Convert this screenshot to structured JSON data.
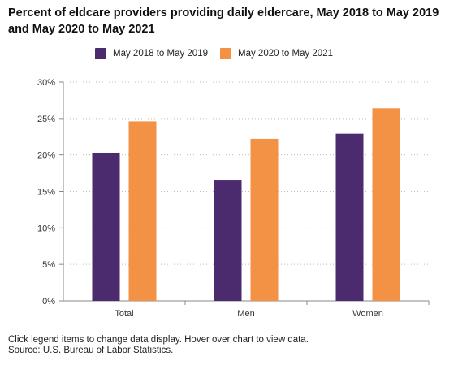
{
  "title": "Percent of eldcare providers providing daily eldercare, May 2018 to May 2019 and May 2020 to May 2021",
  "footer": {
    "note": "Click legend items to change data display. Hover over chart to view data.",
    "source": "Source: U.S. Bureau of Labor Statistics."
  },
  "colors": {
    "series1": "#4b2a6e",
    "series2": "#f39244",
    "grid": "#bbbbbb",
    "axis": "#888888"
  },
  "chart_data": {
    "type": "bar",
    "categories": [
      "Total",
      "Men",
      "Women"
    ],
    "series": [
      {
        "name": "May 2018 to May 2019",
        "values": [
          20.3,
          16.5,
          22.9
        ]
      },
      {
        "name": "May 2020 to May 2021",
        "values": [
          24.6,
          22.2,
          26.4
        ]
      }
    ],
    "y_ticks": [
      "0%",
      "5%",
      "10%",
      "15%",
      "20%",
      "25%",
      "30%"
    ],
    "ylim": [
      0,
      30
    ],
    "ystep": 5,
    "grid": true,
    "legend": "top-center"
  }
}
